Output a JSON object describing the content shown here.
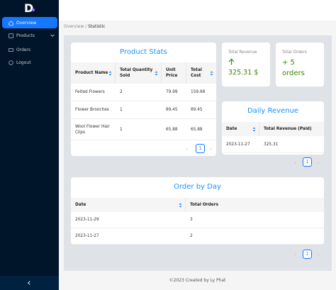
{
  "sidebar": {
    "logo": "D",
    "menu": [
      "Overview",
      "Products",
      "Orders",
      "Logout"
    ]
  },
  "breadcrumb": [
    "Overview",
    "/",
    "Statistic"
  ],
  "product_stats": {
    "title": "Product Stats",
    "columns": [
      "Product Name",
      "Total Quantity Sold",
      "Unit Price",
      "Total Cost"
    ],
    "rows": [
      [
        "Felted Flowers",
        2,
        79.99,
        159.98
      ],
      [
        "Flower Brooches",
        1,
        89.45,
        89.45
      ],
      [
        "Wool Flower Hair Clips",
        1,
        65.88,
        65.88
      ]
    ],
    "page": 1
  },
  "total_revenue": {
    "label": "Total Revenue",
    "value": "325.31 $"
  },
  "total_orders": {
    "label": "Total Orders",
    "value": "+ 5 orders"
  },
  "daily_revenue": {
    "title": "Daily Revenue",
    "columns": [
      "Date",
      "Total Revenue (Paid)"
    ],
    "rows": [
      [
        "2023-11-27",
        325.31
      ]
    ],
    "page": 1
  },
  "order_by_day": {
    "title": "Order by Day",
    "columns": [
      "Date",
      "Total Orders"
    ],
    "rows": [
      [
        "2023-11-29",
        3
      ],
      [
        "2023-11-27",
        2
      ]
    ],
    "page": 1
  },
  "footer": "©2023 Created by Ly Phat"
}
